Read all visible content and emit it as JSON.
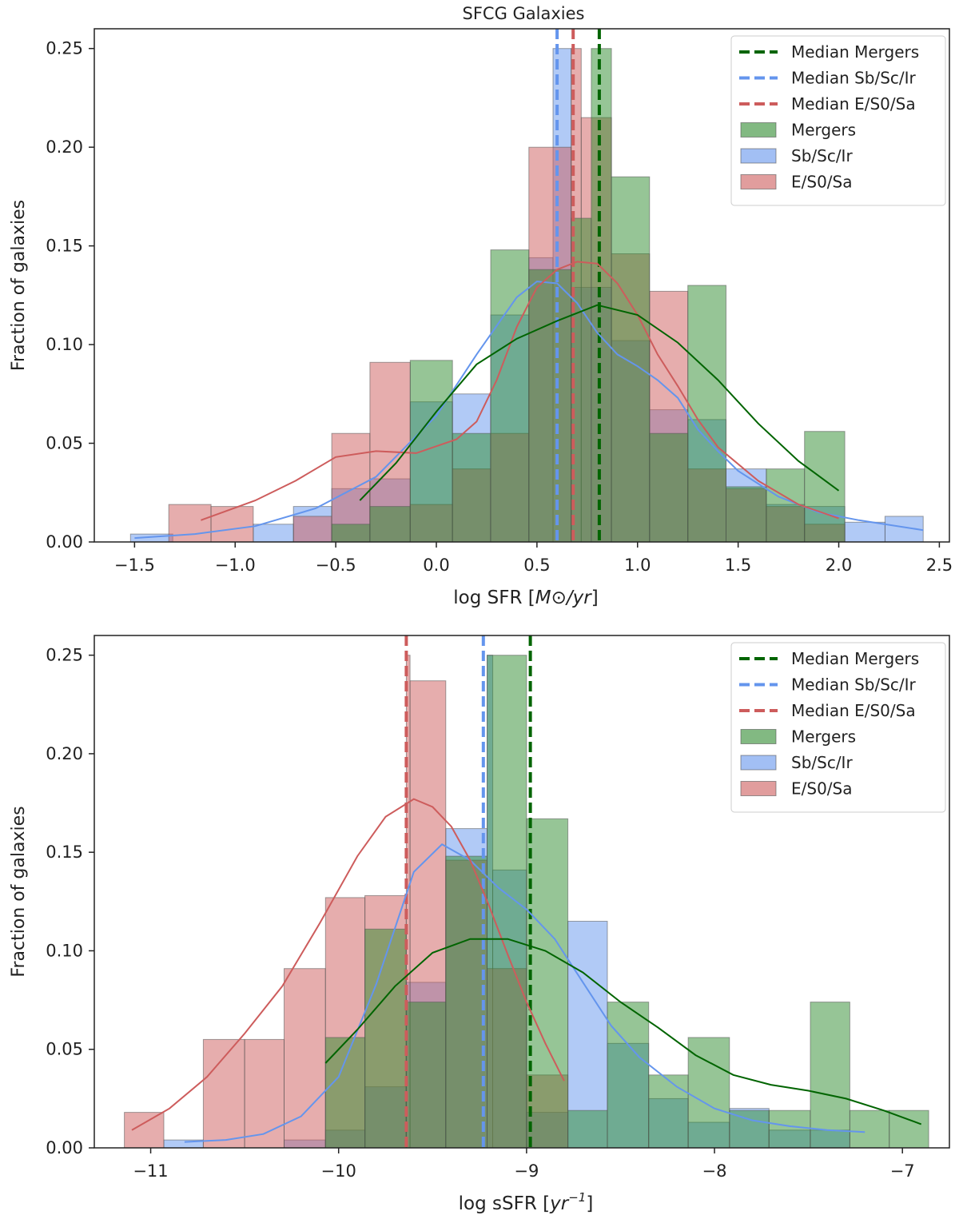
{
  "figure_title": "SFCG Galaxies",
  "colors": {
    "mergers": "#2e8b2e",
    "spirals": "#6495ed",
    "early": "#cd5c5c",
    "mergers_line": "#006400",
    "spirals_line": "#6495ed",
    "early_line": "#cd5c5c"
  },
  "chart_data": [
    {
      "type": "bar",
      "title": "SFCG Galaxies",
      "xlabel": "log SFR [M⊙/yr]",
      "xlabel_main": "log SFR [",
      "xlabel_unit": "M⊙/yr",
      "xlabel_end": "]",
      "ylabel": "Fraction of galaxies",
      "xlim": [
        -1.7,
        2.55
      ],
      "ylim": [
        0,
        0.26
      ],
      "xticks": [
        -1.5,
        -1.0,
        -0.5,
        0.0,
        0.5,
        1.0,
        1.5,
        2.0,
        2.5
      ],
      "xtick_labels": [
        "−1.5",
        "−1.0",
        "−0.5",
        "0.0",
        "0.5",
        "1.0",
        "1.5",
        "2.0",
        "2.5"
      ],
      "yticks": [
        0.0,
        0.05,
        0.1,
        0.15,
        0.2,
        0.25
      ],
      "ytick_labels": [
        "0.00",
        "0.05",
        "0.10",
        "0.15",
        "0.20",
        "0.25"
      ],
      "legend_position": "top-right",
      "legend": [
        "Median Mergers",
        "Median Sb/Sc/Ir",
        "Median E/S0/Sa",
        "Mergers",
        "Sb/Sc/Ir",
        "E/S0/Sa"
      ],
      "series": [
        {
          "name": "Sb/Sc/Ir",
          "key": "spirals",
          "bins": [
            [
              -1.52,
              -1.31,
              0.004
            ],
            [
              -0.91,
              -0.71,
              0.009
            ],
            [
              -0.71,
              -0.52,
              0.018
            ],
            [
              -0.52,
              -0.33,
              0.027
            ],
            [
              -0.33,
              -0.13,
              0.032
            ],
            [
              -0.13,
              0.08,
              0.071
            ],
            [
              0.08,
              0.27,
              0.075
            ],
            [
              0.27,
              0.46,
              0.115
            ],
            [
              0.46,
              0.58,
              0.144
            ],
            [
              0.58,
              0.67,
              0.25
            ],
            [
              0.67,
              0.87,
              0.129
            ],
            [
              0.87,
              1.06,
              0.102
            ],
            [
              1.06,
              1.25,
              0.067
            ],
            [
              1.25,
              1.44,
              0.062
            ],
            [
              1.44,
              1.64,
              0.037
            ],
            [
              1.64,
              1.83,
              0.019
            ],
            [
              1.83,
              2.03,
              0.018
            ],
            [
              2.03,
              2.23,
              0.01
            ],
            [
              2.23,
              2.42,
              0.013
            ]
          ],
          "kde_x": [
            -1.5,
            -1.2,
            -0.9,
            -0.6,
            -0.3,
            0.0,
            0.2,
            0.4,
            0.5,
            0.6,
            0.7,
            0.8,
            0.9,
            1.0,
            1.1,
            1.2,
            1.3,
            1.4,
            1.5,
            1.7,
            1.9,
            2.1,
            2.42
          ],
          "kde_y": [
            0.002,
            0.004,
            0.008,
            0.017,
            0.033,
            0.064,
            0.095,
            0.124,
            0.132,
            0.131,
            0.121,
            0.106,
            0.095,
            0.089,
            0.082,
            0.073,
            0.057,
            0.046,
            0.036,
            0.023,
            0.015,
            0.011,
            0.006
          ]
        },
        {
          "name": "E/S0/Sa",
          "key": "early",
          "bins": [
            [
              -1.33,
              -1.12,
              0.019
            ],
            [
              -1.12,
              -0.91,
              0.018
            ],
            [
              -0.71,
              -0.52,
              0.013
            ],
            [
              -0.52,
              -0.33,
              0.055
            ],
            [
              -0.33,
              -0.13,
              0.091
            ],
            [
              -0.13,
              0.08,
              0.019
            ],
            [
              0.08,
              0.27,
              0.037
            ],
            [
              0.27,
              0.46,
              0.055
            ],
            [
              0.46,
              0.67,
              0.2
            ],
            [
              0.67,
              0.72,
              0.25
            ],
            [
              0.72,
              0.87,
              0.215
            ],
            [
              0.87,
              1.06,
              0.146
            ],
            [
              1.06,
              1.25,
              0.127
            ],
            [
              1.25,
              1.44,
              0.037
            ],
            [
              1.44,
              1.64,
              0.027
            ],
            [
              1.64,
              1.83,
              0.018
            ],
            [
              1.83,
              2.03,
              0.009
            ]
          ],
          "kde_x": [
            -1.17,
            -0.9,
            -0.7,
            -0.5,
            -0.3,
            -0.1,
            0.1,
            0.2,
            0.3,
            0.4,
            0.5,
            0.6,
            0.7,
            0.8,
            0.9,
            1.0,
            1.1,
            1.2,
            1.3,
            1.4,
            1.6,
            1.8,
            2.0
          ],
          "kde_y": [
            0.011,
            0.021,
            0.031,
            0.043,
            0.046,
            0.045,
            0.052,
            0.061,
            0.082,
            0.109,
            0.129,
            0.138,
            0.142,
            0.141,
            0.131,
            0.115,
            0.095,
            0.079,
            0.062,
            0.048,
            0.031,
            0.019,
            0.012
          ]
        },
        {
          "name": "Mergers",
          "key": "mergers",
          "bins": [
            [
              -0.52,
              -0.33,
              0.009
            ],
            [
              -0.33,
              -0.13,
              0.018
            ],
            [
              -0.13,
              0.08,
              0.092
            ],
            [
              0.08,
              0.27,
              0.055
            ],
            [
              0.27,
              0.46,
              0.148
            ],
            [
              0.46,
              0.67,
              0.138
            ],
            [
              0.67,
              0.77,
              0.164
            ],
            [
              0.77,
              0.87,
              0.25
            ],
            [
              0.87,
              1.06,
              0.185
            ],
            [
              1.06,
              1.25,
              0.055
            ],
            [
              1.25,
              1.44,
              0.13
            ],
            [
              1.44,
              1.64,
              0.028
            ],
            [
              1.64,
              1.83,
              0.037
            ],
            [
              1.83,
              2.03,
              0.056
            ]
          ],
          "kde_x": [
            -0.38,
            -0.2,
            0.0,
            0.2,
            0.4,
            0.6,
            0.8,
            1.0,
            1.2,
            1.4,
            1.6,
            1.8,
            2.0
          ],
          "kde_y": [
            0.021,
            0.04,
            0.066,
            0.09,
            0.103,
            0.112,
            0.12,
            0.115,
            0.101,
            0.082,
            0.06,
            0.041,
            0.026
          ]
        }
      ],
      "medians": [
        {
          "name": "Median Mergers",
          "key": "mergers",
          "x": 0.81
        },
        {
          "name": "Median Sb/Sc/Ir",
          "key": "spirals",
          "x": 0.6
        },
        {
          "name": "Median E/S0/Sa",
          "key": "early",
          "x": 0.68
        }
      ]
    },
    {
      "type": "bar",
      "title": "",
      "xlabel": "log sSFR [yr⁻¹]",
      "xlabel_main": "log sSFR [",
      "xlabel_unit": "yr",
      "xlabel_sup": "−1",
      "xlabel_end": "]",
      "ylabel": "Fraction of galaxies",
      "xlim": [
        -11.3,
        -6.75
      ],
      "ylim": [
        0,
        0.26
      ],
      "xticks": [
        -11,
        -10,
        -9,
        -8,
        -7
      ],
      "xtick_labels": [
        "−11",
        "−10",
        "−9",
        "−8",
        "−7"
      ],
      "yticks": [
        0.0,
        0.05,
        0.1,
        0.15,
        0.2,
        0.25
      ],
      "ytick_labels": [
        "0.00",
        "0.05",
        "0.10",
        "0.15",
        "0.20",
        "0.25"
      ],
      "legend_position": "top-right",
      "legend": [
        "Median Mergers",
        "Median Sb/Sc/Ir",
        "Median E/S0/Sa",
        "Mergers",
        "Sb/Sc/Ir",
        "E/S0/Sa"
      ],
      "series": [
        {
          "name": "Sb/Sc/Ir",
          "key": "spirals",
          "bins": [
            [
              -10.93,
              -10.72,
              0.004
            ],
            [
              -10.29,
              -10.07,
              0.004
            ],
            [
              -10.07,
              -9.86,
              0.009
            ],
            [
              -9.86,
              -9.64,
              0.031
            ],
            [
              -9.64,
              -9.43,
              0.084
            ],
            [
              -9.43,
              -9.21,
              0.162
            ],
            [
              -9.21,
              -9.18,
              0.25
            ],
            [
              -9.18,
              -9.0,
              0.141
            ],
            [
              -9.0,
              -8.78,
              0.018
            ],
            [
              -8.78,
              -8.57,
              0.115
            ],
            [
              -8.57,
              -8.35,
              0.053
            ],
            [
              -8.35,
              -8.14,
              0.025
            ],
            [
              -8.14,
              -7.92,
              0.013
            ],
            [
              -7.92,
              -7.71,
              0.02
            ],
            [
              -7.71,
              -7.49,
              0.009
            ],
            [
              -7.49,
              -7.28,
              0.009
            ]
          ],
          "kde_x": [
            -10.82,
            -10.6,
            -10.4,
            -10.2,
            -10.0,
            -9.8,
            -9.6,
            -9.45,
            -9.3,
            -9.15,
            -9.0,
            -8.85,
            -8.7,
            -8.55,
            -8.4,
            -8.2,
            -8.0,
            -7.8,
            -7.6,
            -7.4,
            -7.2
          ],
          "kde_y": [
            0.003,
            0.004,
            0.007,
            0.016,
            0.036,
            0.083,
            0.14,
            0.154,
            0.146,
            0.132,
            0.121,
            0.106,
            0.084,
            0.062,
            0.046,
            0.031,
            0.02,
            0.014,
            0.011,
            0.009,
            0.008
          ]
        },
        {
          "name": "E/S0/Sa",
          "key": "early",
          "bins": [
            [
              -11.14,
              -10.93,
              0.018
            ],
            [
              -10.72,
              -10.5,
              0.055
            ],
            [
              -10.5,
              -10.29,
              0.055
            ],
            [
              -10.29,
              -10.07,
              0.091
            ],
            [
              -10.07,
              -9.86,
              0.127
            ],
            [
              -9.86,
              -9.64,
              0.128
            ],
            [
              -9.64,
              -9.62,
              0.25
            ],
            [
              -9.62,
              -9.43,
              0.237
            ],
            [
              -9.43,
              -9.21,
              0.146
            ],
            [
              -9.21,
              -9.0,
              0.091
            ],
            [
              -9.0,
              -8.78,
              0.037
            ]
          ],
          "kde_x": [
            -11.1,
            -10.9,
            -10.7,
            -10.5,
            -10.3,
            -10.1,
            -9.9,
            -9.75,
            -9.6,
            -9.5,
            -9.4,
            -9.3,
            -9.2,
            -9.1,
            -9.0,
            -8.9,
            -8.8
          ],
          "kde_y": [
            0.009,
            0.02,
            0.036,
            0.058,
            0.082,
            0.114,
            0.148,
            0.168,
            0.177,
            0.173,
            0.163,
            0.146,
            0.123,
            0.098,
            0.074,
            0.053,
            0.034
          ]
        },
        {
          "name": "Mergers",
          "key": "mergers",
          "bins": [
            [
              -10.07,
              -9.86,
              0.056
            ],
            [
              -9.86,
              -9.64,
              0.111
            ],
            [
              -9.64,
              -9.43,
              0.074
            ],
            [
              -9.43,
              -9.21,
              0.148
            ],
            [
              -9.21,
              -9.0,
              0.25
            ],
            [
              -9.0,
              -8.78,
              0.167
            ],
            [
              -8.78,
              -8.57,
              0.019
            ],
            [
              -8.57,
              -8.35,
              0.074
            ],
            [
              -8.35,
              -8.14,
              0.037
            ],
            [
              -8.14,
              -7.92,
              0.056
            ],
            [
              -7.92,
              -7.71,
              0.019
            ],
            [
              -7.71,
              -7.49,
              0.019
            ],
            [
              -7.49,
              -7.28,
              0.074
            ],
            [
              -7.28,
              -7.07,
              0.019
            ],
            [
              -7.07,
              -6.86,
              0.019
            ]
          ],
          "kde_x": [
            -10.07,
            -9.9,
            -9.7,
            -9.5,
            -9.3,
            -9.1,
            -8.9,
            -8.7,
            -8.5,
            -8.3,
            -8.1,
            -7.9,
            -7.7,
            -7.5,
            -7.3,
            -7.1,
            -6.9
          ],
          "kde_y": [
            0.043,
            0.06,
            0.082,
            0.099,
            0.106,
            0.106,
            0.1,
            0.089,
            0.074,
            0.061,
            0.047,
            0.037,
            0.032,
            0.029,
            0.025,
            0.019,
            0.012
          ]
        }
      ],
      "medians": [
        {
          "name": "Median Mergers",
          "key": "mergers",
          "x": -8.98
        },
        {
          "name": "Median Sb/Sc/Ir",
          "key": "spirals",
          "x": -9.23
        },
        {
          "name": "Median E/S0/Sa",
          "key": "early",
          "x": -9.64
        }
      ]
    }
  ]
}
